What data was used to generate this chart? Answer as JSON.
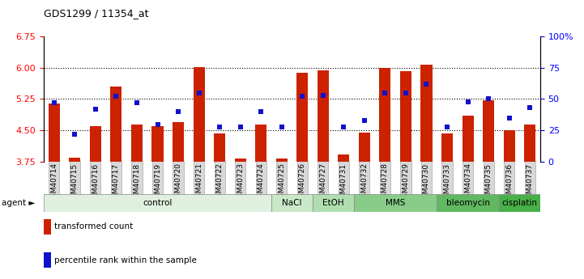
{
  "title": "GDS1299 / 11354_at",
  "samples": [
    "GSM40714",
    "GSM40715",
    "GSM40716",
    "GSM40717",
    "GSM40718",
    "GSM40719",
    "GSM40720",
    "GSM40721",
    "GSM40722",
    "GSM40723",
    "GSM40724",
    "GSM40725",
    "GSM40726",
    "GSM40727",
    "GSM40731",
    "GSM40732",
    "GSM40728",
    "GSM40729",
    "GSM40730",
    "GSM40733",
    "GSM40734",
    "GSM40735",
    "GSM40736",
    "GSM40737"
  ],
  "bar_values": [
    5.15,
    3.85,
    4.6,
    5.55,
    4.65,
    4.6,
    4.7,
    6.02,
    4.42,
    3.83,
    4.65,
    3.83,
    5.88,
    5.93,
    3.93,
    4.45,
    6.0,
    5.92,
    6.07,
    4.42,
    4.85,
    5.22,
    4.5,
    4.65
  ],
  "percentile_values": [
    47,
    22,
    42,
    52,
    47,
    30,
    40,
    55,
    28,
    28,
    40,
    28,
    52,
    53,
    28,
    33,
    55,
    55,
    62,
    28,
    48,
    50,
    35,
    43
  ],
  "ylim_left": [
    3.75,
    6.75
  ],
  "ylim_right": [
    0,
    100
  ],
  "yticks_left": [
    3.75,
    4.5,
    5.25,
    6.0,
    6.75
  ],
  "yticks_right": [
    0,
    25,
    50,
    75,
    100
  ],
  "hlines": [
    4.5,
    5.25,
    6.0
  ],
  "agent_groups": [
    {
      "label": "control",
      "start": 0,
      "end": 10
    },
    {
      "label": "NaCl",
      "start": 11,
      "end": 12
    },
    {
      "label": "EtOH",
      "start": 13,
      "end": 14
    },
    {
      "label": "MMS",
      "start": 15,
      "end": 18
    },
    {
      "label": "bleomycin",
      "start": 19,
      "end": 21
    },
    {
      "label": "cisplatin",
      "start": 22,
      "end": 23
    }
  ],
  "group_colors": [
    "#dff0df",
    "#c8e8c8",
    "#b0deb0",
    "#88cc88",
    "#60b860",
    "#48b048"
  ],
  "bar_color": "#cc2200",
  "dot_color": "#1111cc",
  "legend_bar": "transformed count",
  "legend_dot": "percentile rank within the sample"
}
